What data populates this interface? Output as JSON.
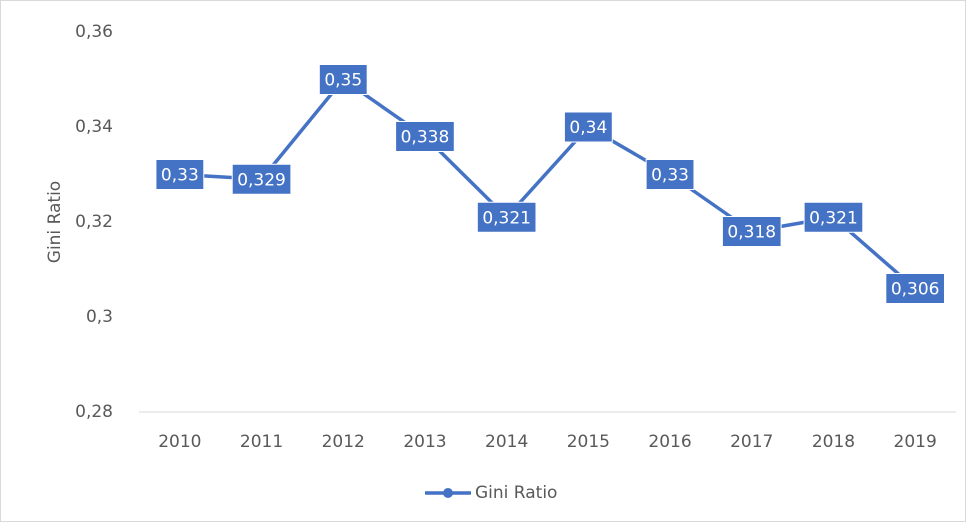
{
  "chart_data": {
    "type": "line",
    "y_label": "Gini Ratio",
    "categories": [
      "2010",
      "2011",
      "2012",
      "2013",
      "2014",
      "2015",
      "2016",
      "2017",
      "2018",
      "2019"
    ],
    "series": [
      {
        "name": "Gini Ratio",
        "color": "#4472c4",
        "values": [
          0.33,
          0.329,
          0.35,
          0.338,
          0.321,
          0.34,
          0.33,
          0.318,
          0.321,
          0.306
        ],
        "value_labels": [
          "0,33",
          "0,329",
          "0,35",
          "0,338",
          "0,321",
          "0,34",
          "0,33",
          "0,318",
          "0,321",
          "0,306"
        ]
      }
    ],
    "ylim": [
      0.28,
      0.36
    ],
    "yticks": [
      {
        "value": 0.28,
        "label": "0,28"
      },
      {
        "value": 0.3,
        "label": "0,3"
      },
      {
        "value": 0.32,
        "label": "0,32"
      },
      {
        "value": 0.34,
        "label": "0,34"
      },
      {
        "value": 0.36,
        "label": "0,36"
      }
    ],
    "grid": false,
    "legend": "bottom"
  }
}
